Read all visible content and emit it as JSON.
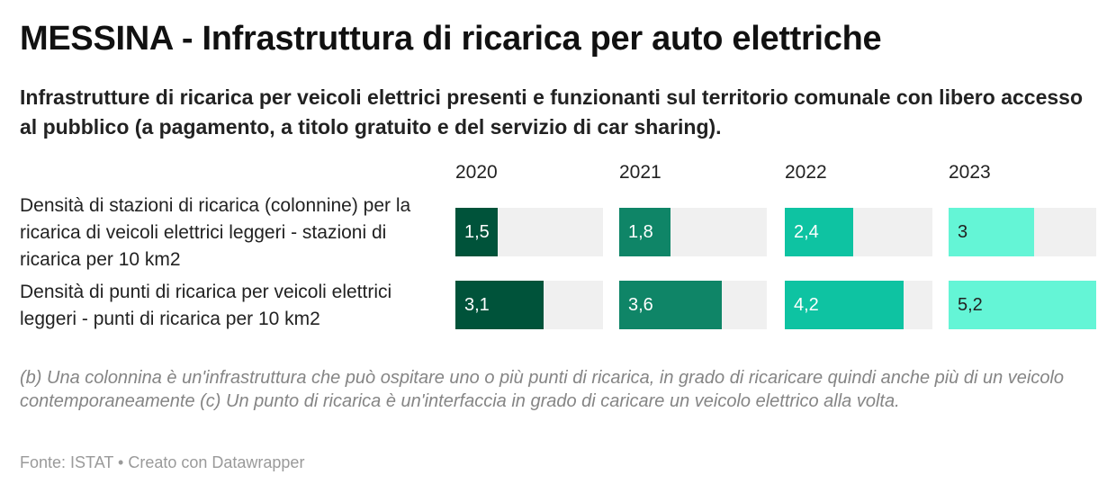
{
  "title": "MESSINA - Infrastruttura di ricarica per auto elettriche",
  "subtitle": "Infrastrutture di ricarica per veicoli elettrici presenti e funzionanti sul territorio comunale con libero accesso al pubblico (a pagamento, a titolo gratuito e del servizio di car sharing).",
  "notes": "(b) Una colonnina è un'infrastruttura che può ospitare uno o più punti di ricarica, in grado di ricaricare quindi anche più di un veicolo contemporaneamente (c) Un punto di ricarica è un'interfaccia in grado di caricare un veicolo elettrico alla volta.",
  "source": "Fonte: ISTAT • Creato con Datawrapper",
  "chart_data": {
    "type": "bar",
    "categories": [
      "Densità di stazioni di ricarica (colonnine) per la ricarica di veicoli elettrici leggeri - stazioni di ricarica per 10 km2",
      "Densità di punti di ricarica per veicoli elettrici leggeri - punti di ricarica per 10 km2"
    ],
    "series": [
      {
        "name": "2020",
        "color": "#00533a",
        "values": [
          1.5,
          3.1
        ],
        "labels": [
          "1,5",
          "3,1"
        ]
      },
      {
        "name": "2021",
        "color": "#0f8567",
        "values": [
          1.8,
          3.6
        ],
        "labels": [
          "1,8",
          "3,6"
        ]
      },
      {
        "name": "2022",
        "color": "#0ec3a2",
        "values": [
          2.4,
          4.2
        ],
        "labels": [
          "2,4",
          "4,2"
        ]
      },
      {
        "name": "2023",
        "color": "#64f5d6",
        "values": [
          3,
          5.2
        ],
        "labels": [
          "3",
          "5,2"
        ]
      }
    ],
    "xlim": [
      0,
      5.2
    ],
    "grid": false,
    "legend": "none"
  }
}
